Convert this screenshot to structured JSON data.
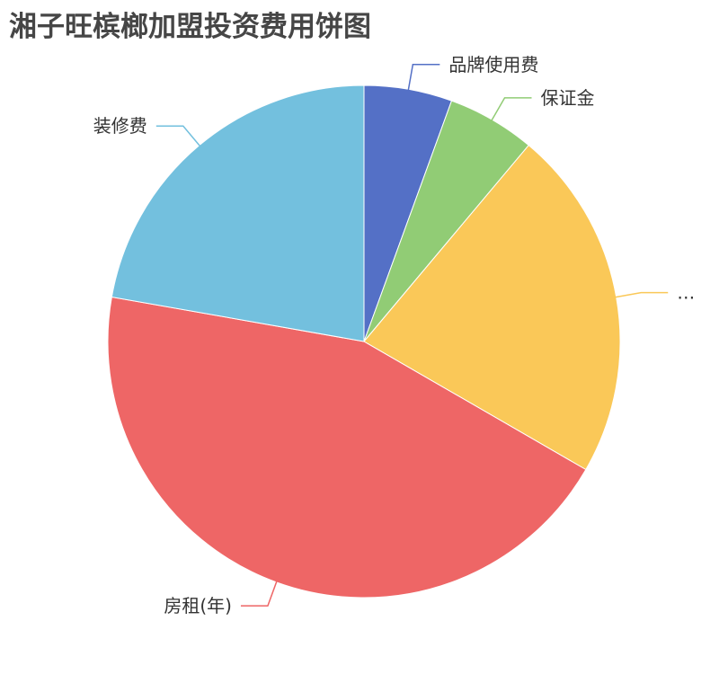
{
  "chart_data": {
    "type": "pie",
    "title": "湘子旺槟榔加盟投资费用饼图",
    "start_angle": 90,
    "direction": "clockwise",
    "slices": [
      {
        "label": "品牌使用费",
        "value": 2,
        "color": "#5470c6"
      },
      {
        "label": "保证金",
        "value": 2,
        "color": "#91cc75"
      },
      {
        "label": "…",
        "value": 8,
        "color": "#fac858"
      },
      {
        "label": "房租(年)",
        "value": 16,
        "color": "#ee6666"
      },
      {
        "label": "装修费",
        "value": 8,
        "color": "#73c0de"
      }
    ]
  }
}
